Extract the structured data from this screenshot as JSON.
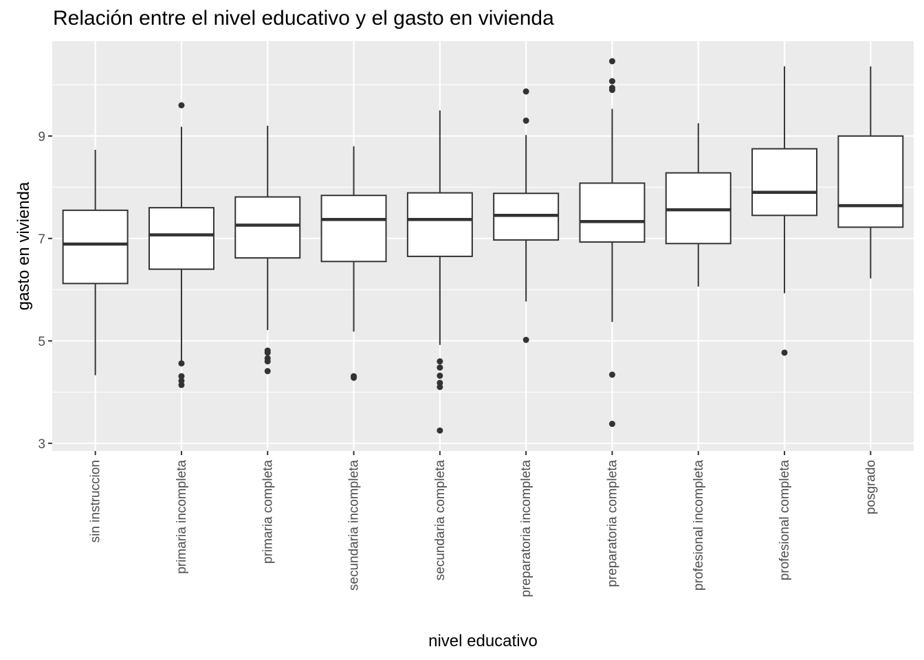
{
  "chart_data": {
    "type": "boxplot",
    "title": "Relación entre el nivel educativo y el gasto en vivienda",
    "xlabel": "nivel educativo",
    "ylabel": "gasto en vivienda",
    "ylim": [
      2.85,
      10.85
    ],
    "yticks": [
      3,
      5,
      7,
      9
    ],
    "grid": true,
    "categories": [
      "sin instruccion",
      "primaria incompleta",
      "primaria completa",
      "secundaria incompleta",
      "secundaria completa",
      "preparatoria incompleta",
      "preparatoria completa",
      "profesional incompleta",
      "profesional completa",
      "posgrado"
    ],
    "boxes": [
      {
        "min": 4.33,
        "q1": 6.12,
        "median": 6.89,
        "q3": 7.55,
        "max": 8.73,
        "outliers": []
      },
      {
        "min": 4.6,
        "q1": 6.4,
        "median": 7.07,
        "q3": 7.6,
        "max": 9.18,
        "outliers": [
          9.6,
          4.56,
          4.31,
          4.22,
          4.14
        ]
      },
      {
        "min": 5.21,
        "q1": 6.62,
        "median": 7.26,
        "q3": 7.81,
        "max": 9.2,
        "outliers": [
          4.81,
          4.77,
          4.66,
          4.6,
          4.41
        ]
      },
      {
        "min": 5.18,
        "q1": 6.55,
        "median": 7.37,
        "q3": 7.84,
        "max": 8.8,
        "outliers": [
          4.31,
          4.28
        ]
      },
      {
        "min": 4.92,
        "q1": 6.65,
        "median": 7.37,
        "q3": 7.89,
        "max": 9.5,
        "outliers": [
          4.6,
          4.48,
          4.32,
          4.18,
          4.1,
          3.25
        ]
      },
      {
        "min": 5.77,
        "q1": 6.97,
        "median": 7.45,
        "q3": 7.88,
        "max": 9.02,
        "outliers": [
          9.87,
          9.3,
          5.02
        ]
      },
      {
        "min": 5.37,
        "q1": 6.93,
        "median": 7.33,
        "q3": 8.08,
        "max": 9.53,
        "outliers": [
          10.46,
          10.07,
          9.94,
          9.9,
          4.34,
          3.38
        ]
      },
      {
        "min": 6.06,
        "q1": 6.9,
        "median": 7.56,
        "q3": 8.28,
        "max": 9.25,
        "outliers": []
      },
      {
        "min": 5.93,
        "q1": 7.45,
        "median": 7.9,
        "q3": 8.75,
        "max": 10.36,
        "outliers": [
          4.77
        ]
      },
      {
        "min": 6.22,
        "q1": 7.22,
        "median": 7.64,
        "q3": 9.0,
        "max": 10.36,
        "outliers": []
      }
    ]
  }
}
